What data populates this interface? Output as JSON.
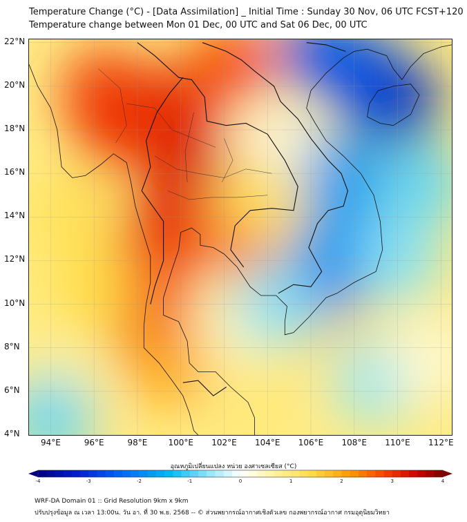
{
  "header": {
    "title_line1": "Temperature Change (°C) - [Data Assimilation] _ Initial Time : Sunday 30 Nov, 06 UTC FCST+120",
    "title_line2": "Temperature change between Mon 01 Dec, 00 UTC and Sat 06 Dec, 00 UTC"
  },
  "map": {
    "lat_labels": [
      "22°N",
      "20°N",
      "18°N",
      "16°N",
      "14°N",
      "12°N",
      "10°N",
      "8°N",
      "6°N",
      "4°N"
    ],
    "lon_labels": [
      "94°E",
      "96°E",
      "98°E",
      "100°E",
      "102°E",
      "104°E",
      "106°E",
      "108°E",
      "110°E",
      "112°E"
    ],
    "field_blobs": [
      {
        "lon": 100.5,
        "lat": 16.5,
        "value": 3.4
      },
      {
        "lon": 99.5,
        "lat": 19.0,
        "value": 3.2
      },
      {
        "lon": 97.0,
        "lat": 18.0,
        "value": 3.0
      },
      {
        "lon": 96.5,
        "lat": 19.8,
        "value": 3.0
      },
      {
        "lon": 102.3,
        "lat": 21.0,
        "value": 2.8
      },
      {
        "lon": 99.2,
        "lat": 13.5,
        "value": 3.2
      },
      {
        "lon": 102.5,
        "lat": 13.2,
        "value": 2.6
      },
      {
        "lon": 98.8,
        "lat": 8.8,
        "value": 3.2
      },
      {
        "lon": 98.5,
        "lat": 11.0,
        "value": 2.8
      },
      {
        "lon": 99.5,
        "lat": 7.2,
        "value": 2.0
      },
      {
        "lon": 95.0,
        "lat": 14.0,
        "value": 1.3
      },
      {
        "lon": 96.0,
        "lat": 10.5,
        "value": 1.4
      },
      {
        "lon": 94.5,
        "lat": 6.5,
        "value": 0.7
      },
      {
        "lon": 104.5,
        "lat": 17.0,
        "value": 0.1
      },
      {
        "lon": 103.5,
        "lat": 15.0,
        "value": 1.2
      },
      {
        "lon": 102.5,
        "lat": 9.0,
        "value": 0.5
      },
      {
        "lon": 103.5,
        "lat": 5.5,
        "value": 1.0
      },
      {
        "lon": 106.5,
        "lat": 9.6,
        "value": 1.3
      },
      {
        "lon": 110.0,
        "lat": 19.2,
        "value": -3.5
      },
      {
        "lon": 108.5,
        "lat": 20.5,
        "value": -2.8
      },
      {
        "lon": 106.5,
        "lat": 21.5,
        "value": -2.6
      },
      {
        "lon": 107.5,
        "lat": 16.0,
        "value": -1.8
      },
      {
        "lon": 106.5,
        "lat": 11.2,
        "value": -2.6
      },
      {
        "lon": 107.5,
        "lat": 13.0,
        "value": -1.8
      },
      {
        "lon": 111.0,
        "lat": 15.5,
        "value": -0.9
      },
      {
        "lon": 110.0,
        "lat": 12.0,
        "value": -0.7
      },
      {
        "lon": 109.0,
        "lat": 6.5,
        "value": -0.6
      },
      {
        "lon": 104.5,
        "lat": 10.0,
        "value": -0.7
      },
      {
        "lon": 111.5,
        "lat": 7.5,
        "value": 0.3
      },
      {
        "lon": 94.0,
        "lat": 4.8,
        "value": -0.9
      }
    ]
  },
  "colorbar": {
    "label": "อุณหภูมิเปลี่ยนแปลง หน่วย องศาเซลเซียส (°C)",
    "ticks": [
      "-4",
      "-3",
      "-2",
      "-1",
      "0",
      "1",
      "2",
      "3",
      "4"
    ],
    "min": -4,
    "max": 4
  },
  "footer": {
    "line1": "WRF-DA Domain 01 :: Grid Resolution 9km x 9km",
    "line2": "ปรับปรุงข้อมูล ณ เวลา 13:00น. วัน อา. ที่ 30 พ.ย. 2568 -- © ส่วนพยากรณ์อากาศเชิงตัวเลข กองพยากรณ์อากาศ กรมอุตุนิยมวิทยา"
  },
  "colors": {
    "neg_max": "#000080",
    "zero": "#ffffff",
    "pos_max": "#7f0000"
  }
}
